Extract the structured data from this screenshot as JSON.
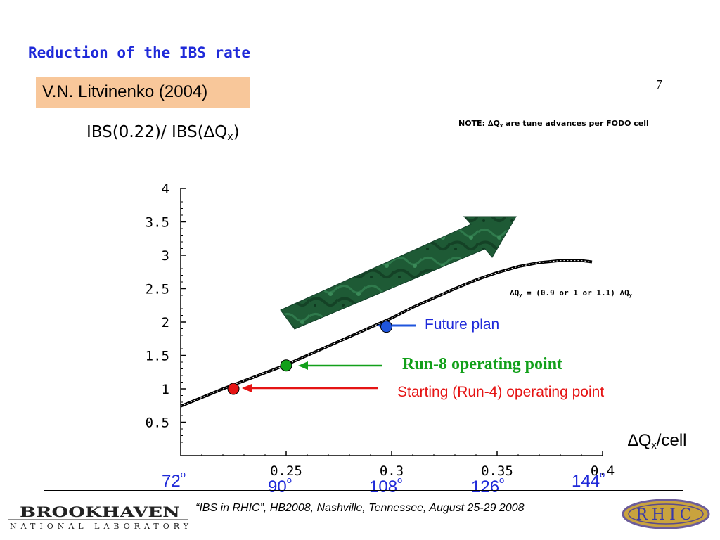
{
  "header": {
    "title": "Reduction of the IBS rate",
    "author": "V.N. Litvinenko (2004)",
    "page_number": "7"
  },
  "ratio_label": {
    "prefix": "IBS(0.22)/ IBS(",
    "delta": "∆",
    "q": "Q",
    "sub": "x",
    "suffix": ")"
  },
  "note": {
    "prefix": "NOTE: ",
    "delta": "∆",
    "q": "Q",
    "sub": "x",
    "rest": " are tune advances per  FODO cell"
  },
  "qy_relation": {
    "delta1": "∆",
    "q1": "Q",
    "sub1": "y",
    "mid": " = (0.9 or 1 or 1.1) ",
    "delta2": "∆",
    "q2": "Q",
    "sub2": "y"
  },
  "annotations": {
    "future": "Future plan",
    "run8": "Run-8 operating point",
    "start": "Starting (Run-4) operating point"
  },
  "x_axis_label": {
    "delta": "∆",
    "q": "Q",
    "sub": "x",
    "suffix": "/cell"
  },
  "phase_labels": [
    {
      "value": "72",
      "sup": "o"
    },
    {
      "value": "90",
      "sup": "o"
    },
    {
      "value": "108",
      "sup": "o"
    },
    {
      "value": "126",
      "sup": "o"
    },
    {
      "value": "144",
      "sup": "o"
    }
  ],
  "footer": {
    "text": "“IBS in RHIC”, HB2008, Nashville, Tennessee, August 25-29  2008",
    "bnl_logo_text": "BROOKHAVEN",
    "bnl_logo_subtext": "NATIONAL LABORATORY",
    "rhic_logo_text": "RHIC"
  },
  "colors": {
    "title_blue": "#1f2ad9",
    "future_blue": "#1f2ad9",
    "run8_green": "#12a01a",
    "start_red": "#e51414",
    "author_box": "#f8c79a",
    "arrow_green": "#1e5a35"
  },
  "chart_data": {
    "type": "line",
    "x_range": [
      0.2,
      0.4
    ],
    "y_range": [
      0,
      4
    ],
    "x_ticks": [
      "0.25",
      "0.3",
      "0.35",
      "0.4"
    ],
    "x_tick_values": [
      0.25,
      0.3,
      0.35,
      0.4
    ],
    "y_ticks": [
      "0.5",
      "1",
      "1.5",
      "2",
      "2.5",
      "3",
      "3.5",
      "4"
    ],
    "y_tick_values": [
      0.5,
      1,
      1.5,
      2,
      2.5,
      3,
      3.5,
      4
    ],
    "series": [
      {
        "x": [
          0.2,
          0.21,
          0.22,
          0.23,
          0.24,
          0.25,
          0.26,
          0.27,
          0.28,
          0.29,
          0.3,
          0.31,
          0.32,
          0.33,
          0.34,
          0.35,
          0.36,
          0.37,
          0.38,
          0.39,
          0.395
        ],
        "y": [
          0.74,
          0.87,
          1.0,
          1.12,
          1.24,
          1.36,
          1.5,
          1.64,
          1.78,
          1.92,
          2.06,
          2.22,
          2.36,
          2.5,
          2.63,
          2.74,
          2.83,
          2.89,
          2.92,
          2.92,
          2.9
        ]
      }
    ],
    "points": [
      {
        "name": "Starting (Run-4) operating point",
        "x": 0.225,
        "y": 1.0,
        "color": "#e51414"
      },
      {
        "name": "Run-8 operating point",
        "x": 0.25,
        "y": 1.35,
        "color": "#12a01a"
      },
      {
        "name": "Future plan",
        "x": 0.2975,
        "y": 1.93,
        "color": "#1f55dd"
      }
    ],
    "grid": false
  }
}
